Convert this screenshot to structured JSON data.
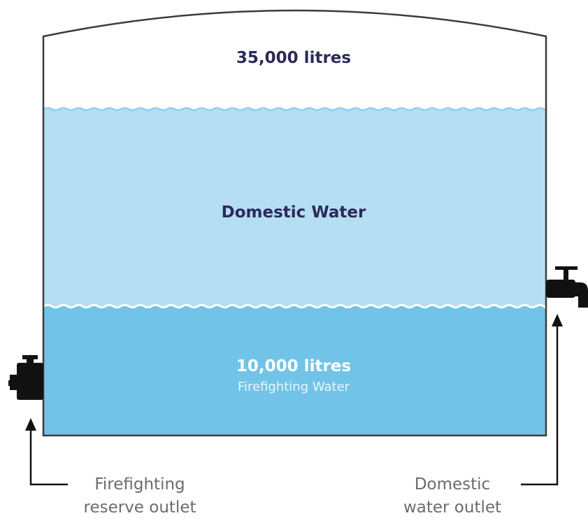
{
  "tank": {
    "total_capacity": "35,000 litres",
    "domestic_label": "Domestic Water",
    "reserve_capacity": "10,000 litres",
    "reserve_label": "Firefighting Water"
  },
  "outlets": {
    "firefighting_line1": "Firefighting",
    "firefighting_line2": "reserve outlet",
    "domestic_line1": "Domestic",
    "domestic_line2": "water outlet"
  },
  "colors": {
    "tank_outline": "#3c3c3c",
    "domestic_water": "#b5def2",
    "firefighting_water": "#71c4e7",
    "wave_line": "#8fd0ee",
    "heading_text": "#2b2a5a",
    "reserve_text": "#ffffff",
    "outlet_text": "#6b6b6b",
    "fixture": "#111111"
  }
}
